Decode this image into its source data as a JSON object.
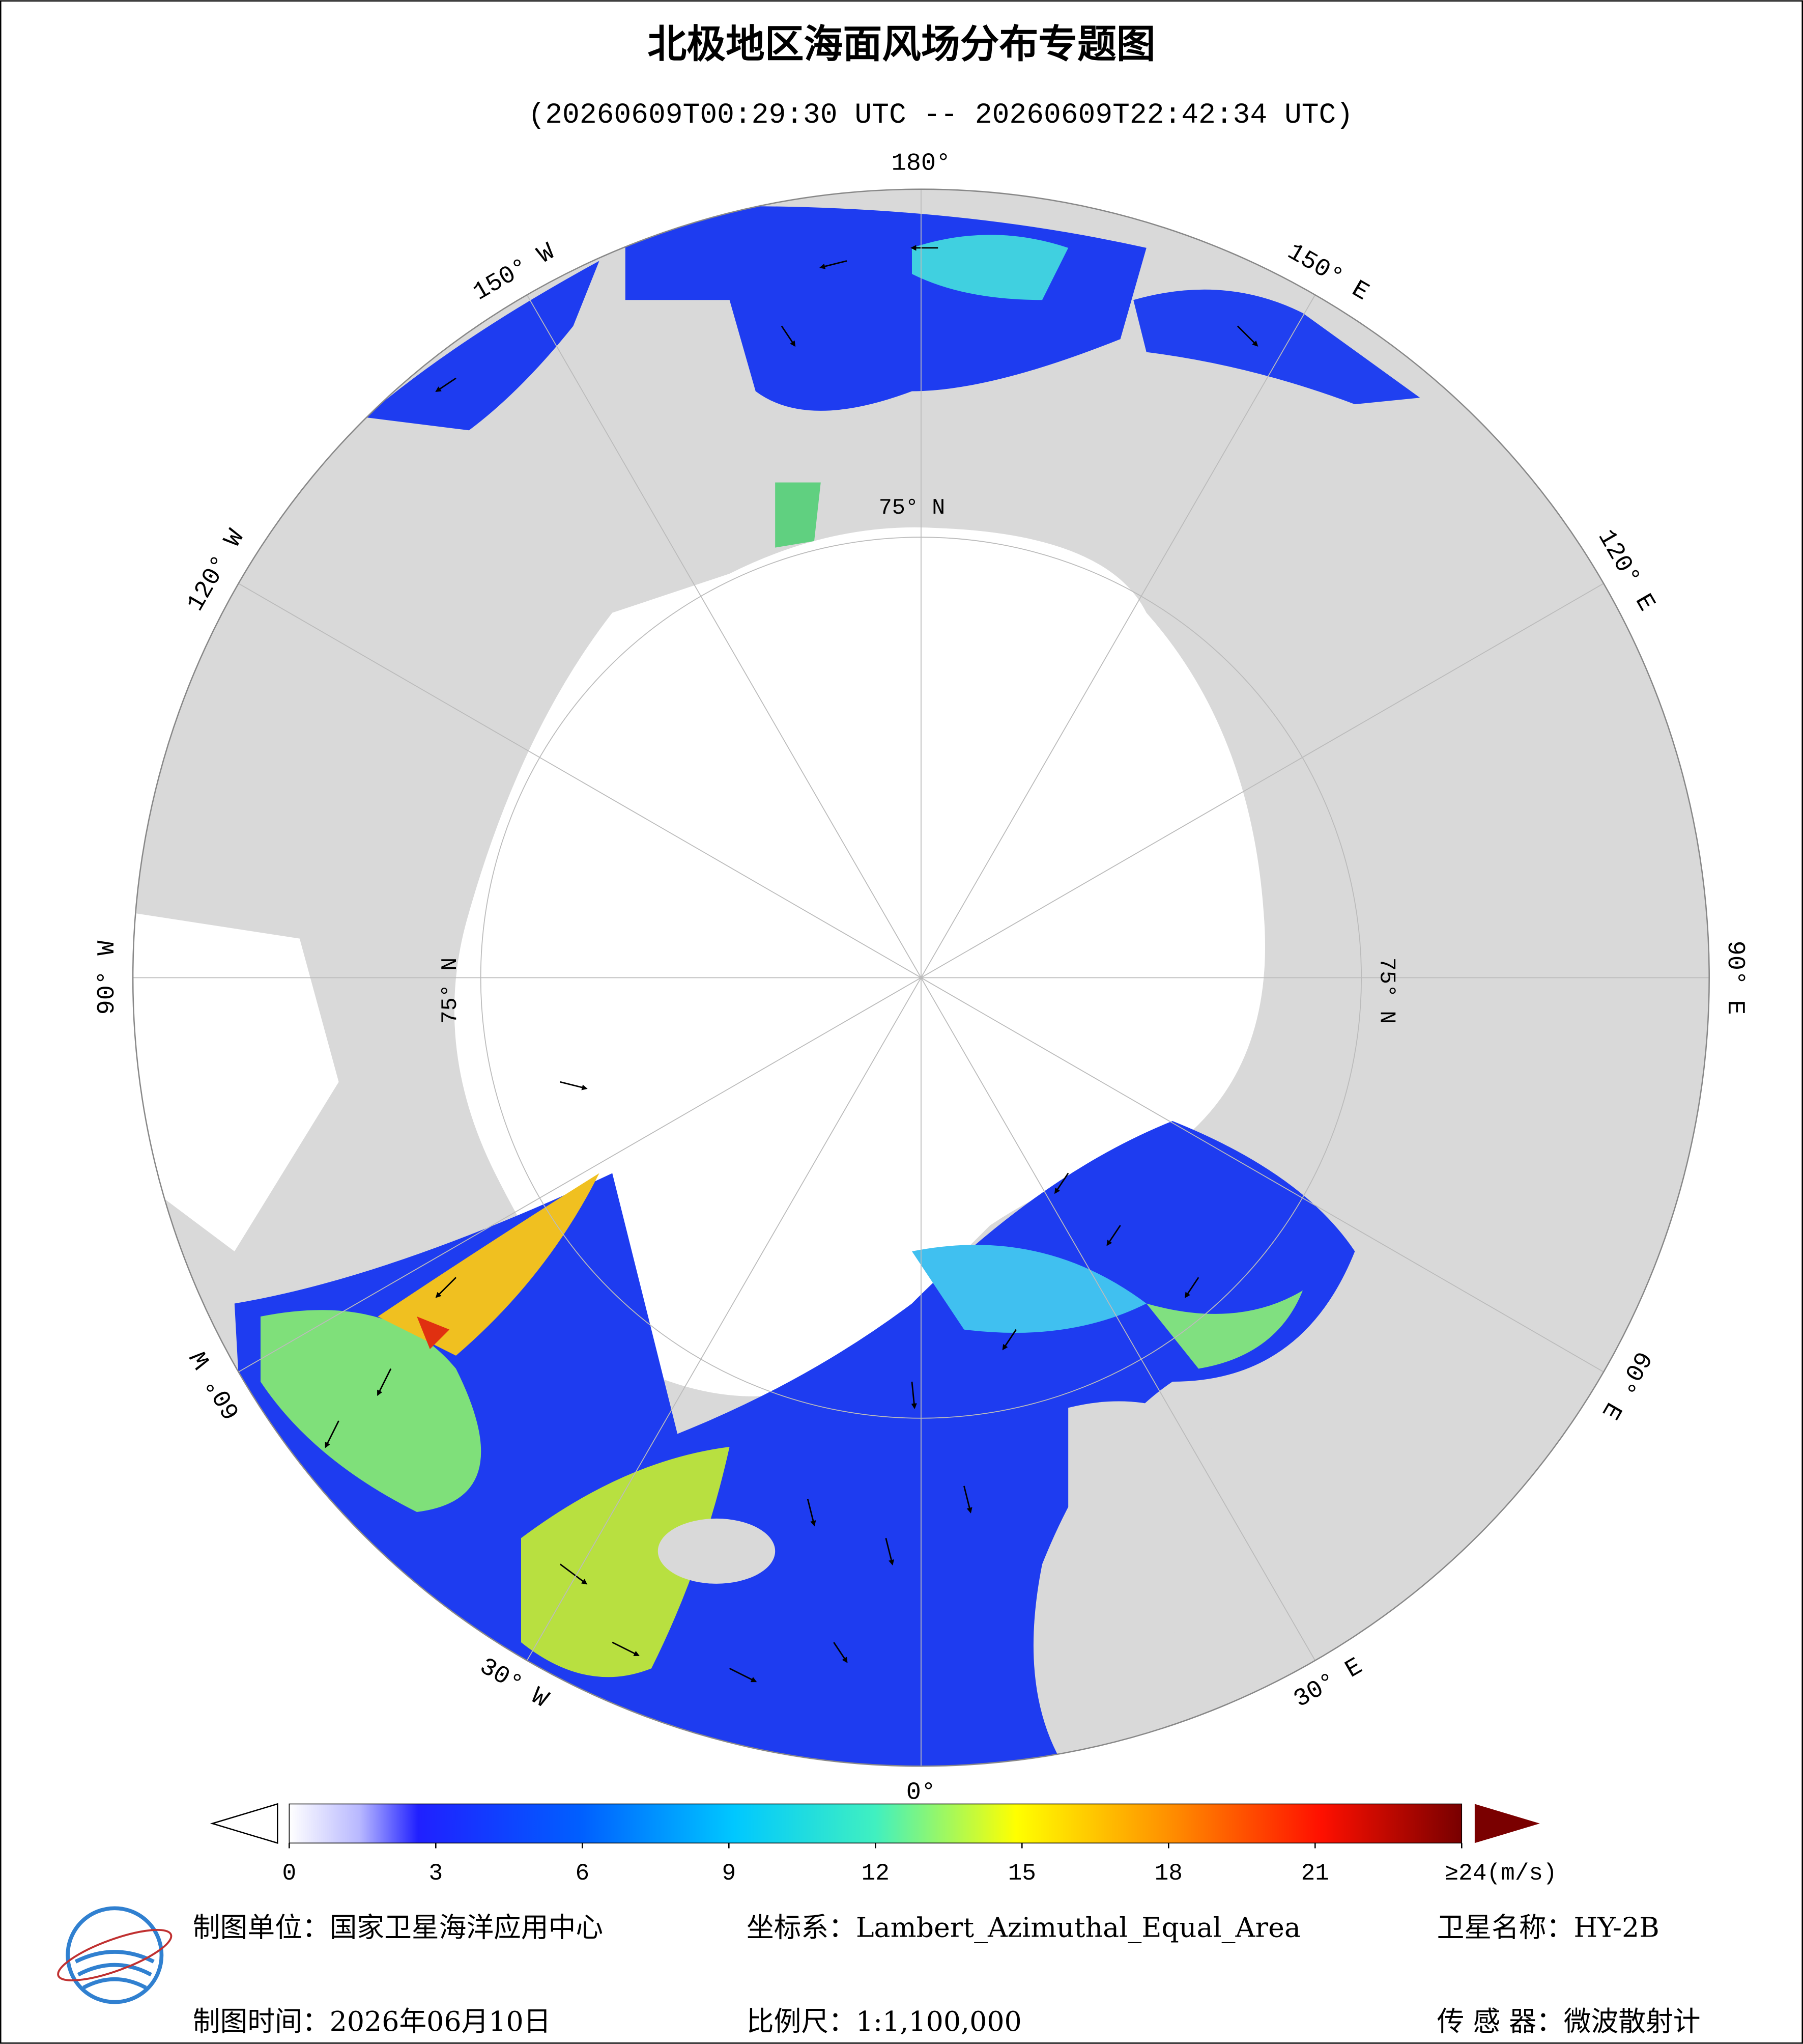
{
  "header": {
    "title": "北极地区海面风场分布专题图",
    "subtitle": "(20260609T00:29:30 UTC -- 20260609T22:42:34 UTC)"
  },
  "map": {
    "meridian_labels": [
      "180°",
      "150° E",
      "120° E",
      "90° E",
      "60° E",
      "30° E",
      "0°",
      "30° W",
      "60° W",
      "90° W",
      "120° W",
      "150° W"
    ],
    "parallel_label": "75° N"
  },
  "colorbar": {
    "ticks": [
      0,
      3,
      6,
      9,
      12,
      15,
      18,
      21,
      {
        "value": 24,
        "label": "≥24(m/s)"
      }
    ],
    "range": [
      0,
      24
    ]
  },
  "footer": {
    "unit": "制图单位：国家卫星海洋应用中心",
    "crs": "坐标系：Lambert_Azimuthal_Equal_Area",
    "satellite": "卫星名称：HY-2B",
    "date": "制图时间：2026年06月10日",
    "scale": "比例尺：1:1,100,000",
    "sensor": "传 感 器：微波散射计"
  }
}
